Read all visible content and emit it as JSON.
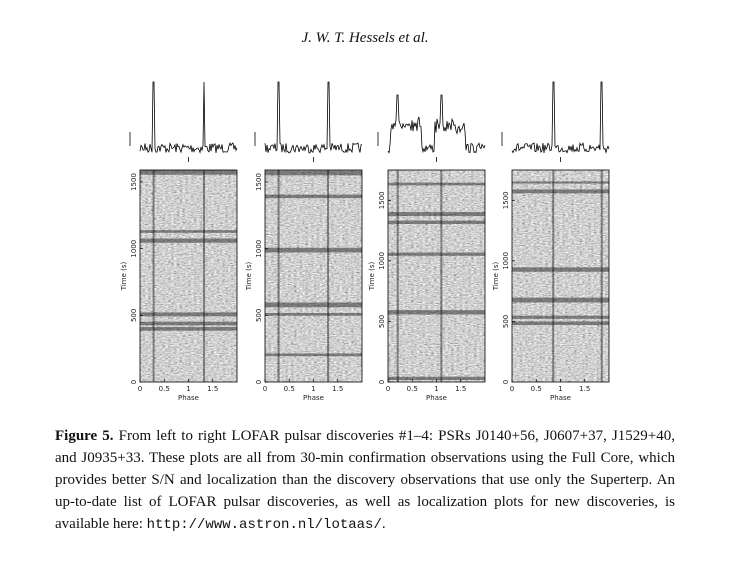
{
  "header": {
    "running_head": "J. W. T. Hessels et al."
  },
  "figure": {
    "panels": [
      {
        "ylabel": "Time (s)",
        "xlabel": "Phase",
        "xlim": [
          0,
          2
        ],
        "ylim": [
          0,
          1590
        ],
        "xticks": [
          0,
          0.5,
          1,
          1.5
        ],
        "yticks": [
          0,
          500,
          1000,
          1500
        ]
      },
      {
        "ylabel": "Time (s)",
        "xlabel": "Phase",
        "xlim": [
          0,
          2
        ],
        "ylim": [
          0,
          1590
        ],
        "xticks": [
          0,
          0.5,
          1,
          1.5
        ],
        "yticks": [
          0,
          500,
          1000,
          1500
        ]
      },
      {
        "ylabel": "Time (s)",
        "xlabel": "Phase",
        "xlim": [
          0,
          2
        ],
        "ylim": [
          0,
          1750
        ],
        "xticks": [
          0,
          0.5,
          1,
          1.5
        ],
        "yticks": [
          0,
          500,
          1000,
          1500
        ]
      },
      {
        "ylabel": "Time (s)",
        "xlabel": "Phase",
        "xlim": [
          0,
          2
        ],
        "ylim": [
          0,
          1750
        ],
        "xticks": [
          0,
          0.5,
          1,
          1.5
        ],
        "yticks": [
          0,
          500,
          1000,
          1500
        ]
      }
    ]
  },
  "caption": {
    "label": "Figure 5.",
    "text": "From left to right LOFAR pulsar discoveries #1–4: PSRs J0140+56, J0607+37, J1529+40, and J0935+33. These plots are all from 30-min confirmation observations using the Full Core, which provides better S/N and localization than the discovery observations that use only the Superterp. An up-to-date list of LOFAR pulsar discoveries, as well as localization plots for new discoveries, is available here:",
    "url": "http://www.astron.nl/lotaas/",
    "end": "."
  }
}
